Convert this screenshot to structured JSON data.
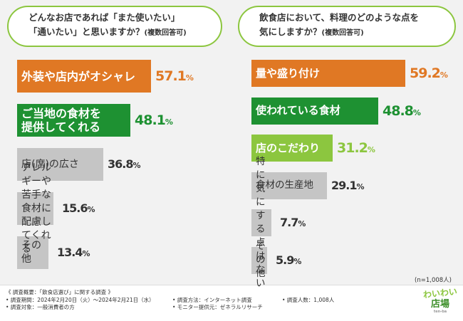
{
  "left_question": {
    "line1": "どんなお店であれば「また使いたい」",
    "line2_main": "「通いたい」と思いますか？",
    "line2_note": "(複数回答可)"
  },
  "right_question": {
    "line1": "飲食店において、料理のどのような点を",
    "line2_main": "気にしますか？",
    "line2_note": "(複数回答可)"
  },
  "sample_size": "(n=1,008人)",
  "colors": {
    "orange": "#e07824",
    "green": "#1e9132",
    "lime": "#8cc63f",
    "gray": "#c5c5c5",
    "text": "#333333"
  },
  "chart_data": [
    {
      "type": "bar",
      "title": "どんなお店であれば「また使いたい」「通いたい」と思いますか？(複数回答可)",
      "categories": [
        "外装や店内がオシャレ",
        "ご当地の食材を\n提供してくれる",
        "店(席)の広さ",
        "アレルギーや苦手な\n食材に配慮してくれる",
        "その他"
      ],
      "values": [
        57.1,
        48.1,
        36.8,
        15.6,
        13.4
      ],
      "unit": "%",
      "value_labels": [
        {
          "num": "57.1",
          "unit": "%"
        },
        {
          "num": "48.1",
          "unit": "%"
        },
        {
          "num": "36.8",
          "unit": "%"
        },
        {
          "num": "15.6",
          "unit": "%"
        },
        {
          "num": "13.4",
          "unit": "%"
        }
      ],
      "bar_colors": [
        "orange",
        "green",
        "gray",
        "gray",
        "gray"
      ]
    },
    {
      "type": "bar",
      "title": "飲食店において、料理のどのような点を気にしますか？(複数回答可)",
      "categories": [
        "量や盛り付け",
        "使われている食材",
        "店のこだわり",
        "食材の生産地",
        "特に気にする点はない",
        "その他"
      ],
      "values": [
        59.2,
        48.8,
        31.2,
        29.1,
        7.7,
        5.9
      ],
      "unit": "%",
      "value_labels": [
        {
          "num": "59.2",
          "unit": "%"
        },
        {
          "num": "48.8",
          "unit": "%"
        },
        {
          "num": "31.2",
          "unit": "%"
        },
        {
          "num": "29.1",
          "unit": "%"
        },
        {
          "num": "7.7",
          "unit": "%"
        },
        {
          "num": "5.9",
          "unit": "%"
        }
      ],
      "bar_colors": [
        "orange",
        "green",
        "lime",
        "gray",
        "gray",
        "gray"
      ]
    }
  ],
  "footer": {
    "overview": "《 調査概要：「飲食店選び」に関する調査 》",
    "period": "• 調査期間：2024年2月20日（火）〜2024年2月21日（水）",
    "target": "• 調査対象：一般消費者の方",
    "method": "• 調査方法：インターネット調査",
    "provider": "• モニター提供元：ゼネラルリサーチ",
    "count": "• 調査人数：1,008人"
  },
  "logo": {
    "line1": "わいわい",
    "line2": "店場",
    "tagline": "ten-ba"
  }
}
